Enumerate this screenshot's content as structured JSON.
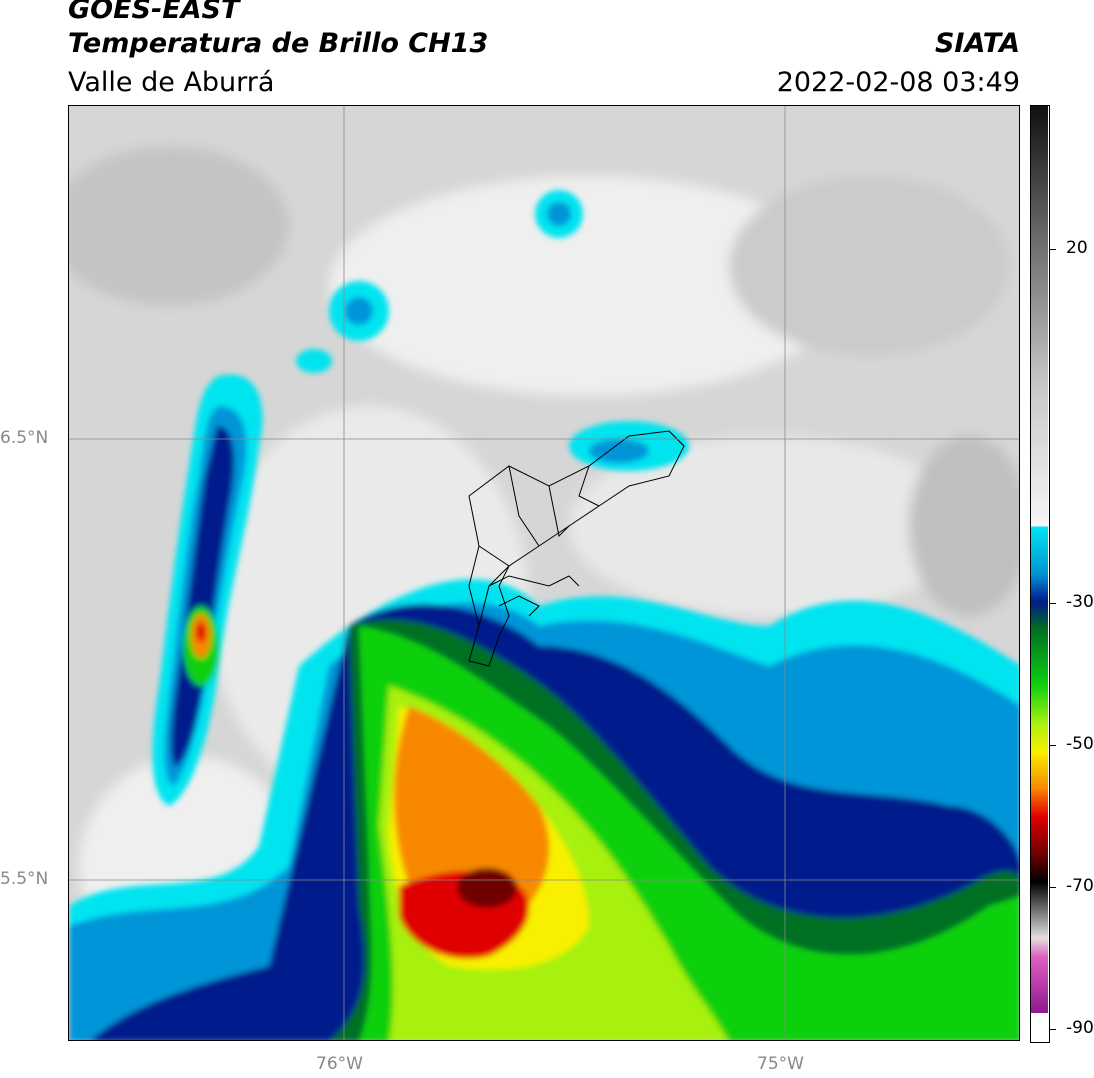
{
  "header": {
    "satellite": "GOES-EAST",
    "product": "Temperatura de Brillo CH13",
    "region": "Valle de Aburrá",
    "organization": "SIATA",
    "timestamp": "2022-02-08 03:49"
  },
  "map": {
    "latitude_labels": [
      "6.5°N",
      "5.5°N"
    ],
    "longitude_labels": [
      "76°W",
      "75°W"
    ]
  },
  "colorbar": {
    "tick_labels": [
      "20",
      "-30",
      "-50",
      "-70",
      "-90"
    ],
    "colors": {
      "warm_gray_dark": "#202020",
      "gray": "#c8c8c8",
      "white": "#f4f4f4",
      "cyan": "#00e4f0",
      "light_blue": "#0094d8",
      "dark_blue": "#001c8c",
      "dark_green": "#007020",
      "green": "#10d010",
      "lime": "#a8f010",
      "yellow": "#f8f000",
      "orange": "#f88800",
      "red": "#e00000",
      "dark_red": "#700000",
      "black": "#000000",
      "pink": "#e060c0",
      "purple": "#901890"
    }
  }
}
